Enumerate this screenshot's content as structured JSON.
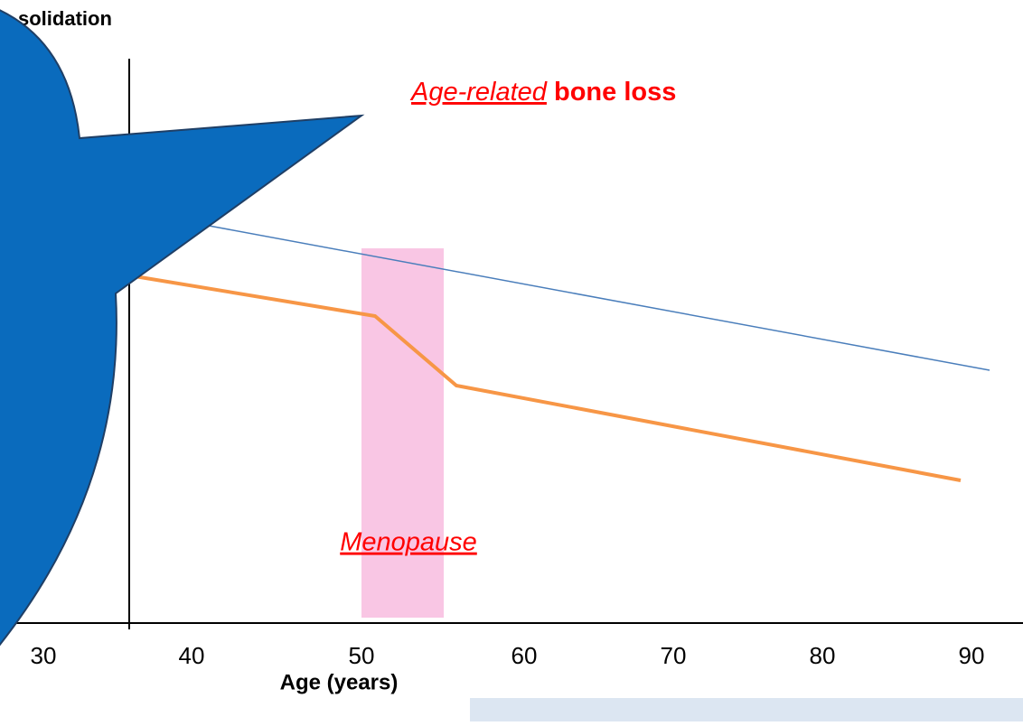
{
  "y_axis_title": "solidation",
  "annotation": {
    "italic": "Age-related",
    "bold": "bone loss"
  },
  "band_label": "Menopause",
  "x_axis": {
    "title": "Age (years)",
    "ticks": [
      30,
      40,
      50,
      60,
      70,
      80,
      90
    ]
  }
}
